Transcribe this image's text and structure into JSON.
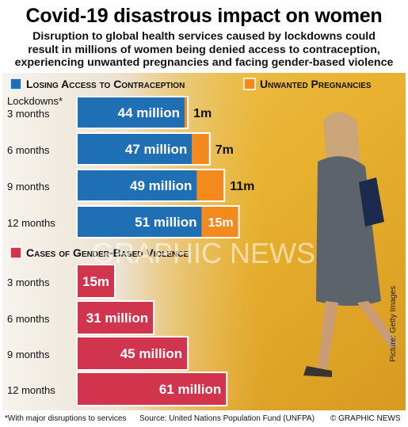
{
  "title": "Covid-19 disastrous impact on women",
  "subtitle_lines": [
    "Disruption to global health services caused by lockdowns could",
    "result in millions of women being denied access to contraception,",
    "experiencing unwanted pregnancies and facing gender-based violence"
  ],
  "photo_credit": "Picture: Getty Images",
  "watermark": "GRAPHIC NEWS",
  "footer": {
    "footnote": "*With major disruptions to services",
    "source": "Source: United Nations Population Fund (UNFPA)",
    "copyright": "© GRAPHIC NEWS"
  },
  "colors": {
    "contraception": "#1f6fb5",
    "pregnancies": "#f28a1e",
    "violence": "#d1344d",
    "background_yellow": "#e9b534",
    "bar_outline": "#ffffff"
  },
  "chart_data": [
    {
      "type": "bar",
      "orientation": "horizontal",
      "stacked": true,
      "axis_title": "Lockdowns*",
      "categories": [
        "3 months",
        "6 months",
        "9 months",
        "12 months"
      ],
      "series": [
        {
          "name": "Losing Access to Contraception",
          "values": [
            44,
            47,
            49,
            51
          ],
          "labels": [
            "44 million",
            "47 million",
            "49 million",
            "51 million"
          ]
        },
        {
          "name": "Unwanted Pregnancies",
          "values": [
            1,
            7,
            11,
            15
          ],
          "labels": [
            "1m",
            "7m",
            "11m",
            "15m"
          ]
        }
      ],
      "unit": "million",
      "legend_position": "top"
    },
    {
      "type": "bar",
      "orientation": "horizontal",
      "categories": [
        "3 months",
        "6 months",
        "9 months",
        "12 months"
      ],
      "series": [
        {
          "name": "Cases of Gender-Based Violence",
          "values": [
            15,
            31,
            45,
            61
          ],
          "labels": [
            "15m",
            "31 million",
            "45 million",
            "61 million"
          ]
        }
      ],
      "unit": "million",
      "legend_position": "top"
    }
  ]
}
